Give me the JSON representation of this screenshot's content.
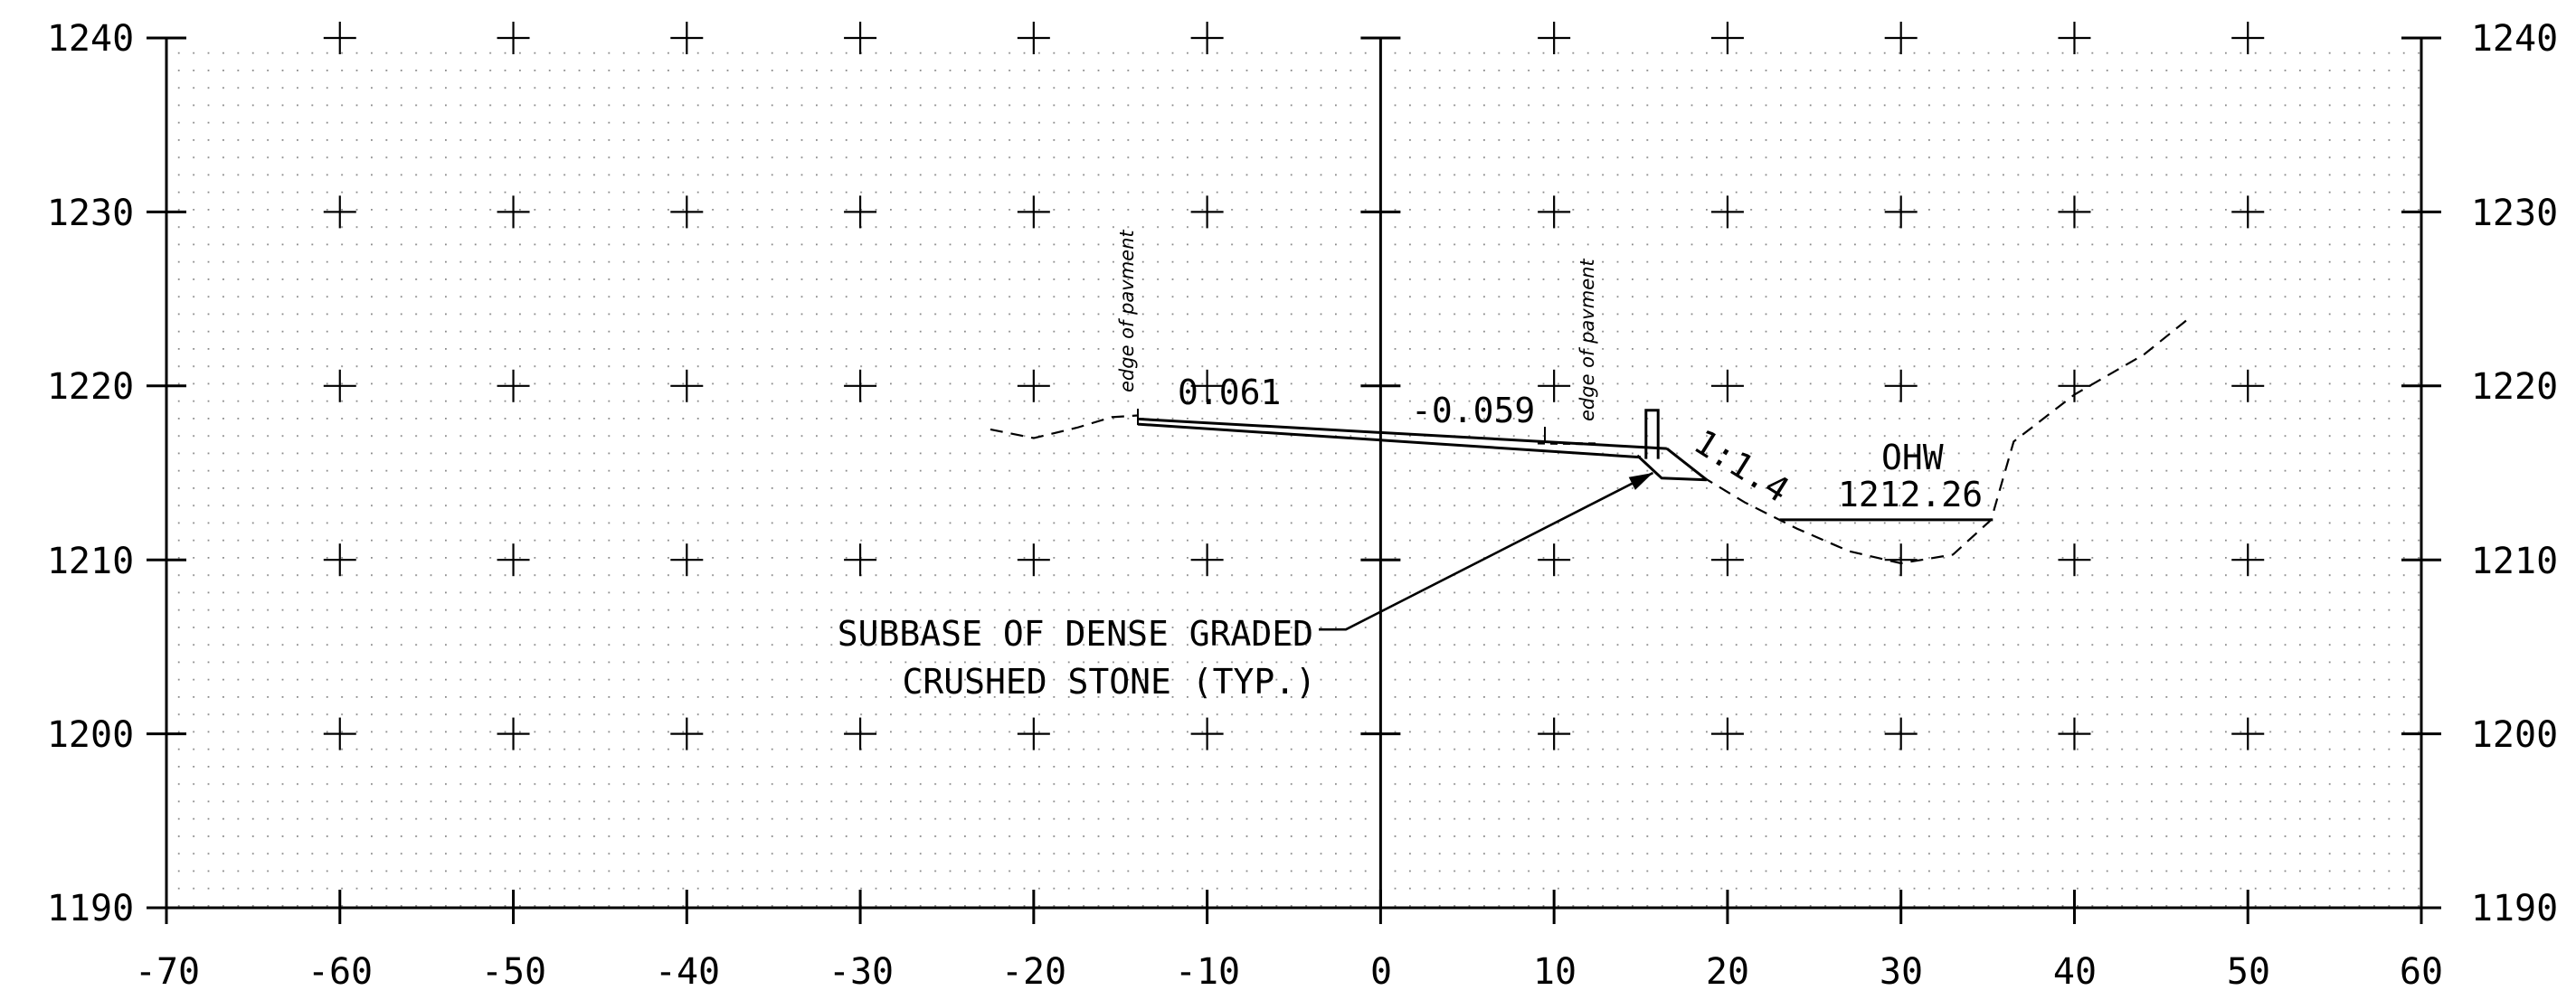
{
  "chart_data": {
    "type": "cross-section",
    "x_range": [
      -70,
      60
    ],
    "y_range": [
      1190,
      1240
    ],
    "x_ticks": [
      "-70",
      "-60",
      "-50",
      "-40",
      "-30",
      "-20",
      "-10",
      "0",
      "10",
      "20",
      "30",
      "40",
      "50",
      "60"
    ],
    "y_ticks": [
      "1190",
      "1200",
      "1210",
      "1220",
      "1230",
      "1240"
    ],
    "grid": "dotted",
    "existing_ground": [
      [
        -22.5,
        1217.5
      ],
      [
        -20,
        1217.0
      ],
      [
        -17.5,
        1217.6
      ],
      [
        -15.5,
        1218.2
      ],
      [
        -14,
        1218.3
      ]
    ],
    "existing_ground_right": [
      [
        18.5,
        1214.8
      ],
      [
        21,
        1213.3
      ],
      [
        24,
        1211.8
      ],
      [
        27,
        1210.5
      ],
      [
        30,
        1209.8
      ],
      [
        33,
        1210.3
      ],
      [
        35.2,
        1212.3
      ],
      [
        36.5,
        1216.8
      ],
      [
        40,
        1219.5
      ],
      [
        44,
        1221.8
      ],
      [
        46.5,
        1223.8
      ]
    ],
    "pavement_top": [
      [
        -14,
        1218.1
      ],
      [
        16.5,
        1216.4
      ]
    ],
    "pavement_bottom": [
      [
        -14,
        1217.8
      ],
      [
        15,
        1215.9
      ]
    ],
    "fill_slope": [
      [
        16.5,
        1216.4
      ],
      [
        18.8,
        1214.6
      ]
    ],
    "subbase": [
      [
        14.8,
        1216.0
      ],
      [
        16.2,
        1214.7
      ],
      [
        18.8,
        1214.6
      ]
    ],
    "water_line": [
      [
        23,
        1212.3
      ],
      [
        35.3,
        1212.3
      ]
    ],
    "guardrail_post": [
      [
        15.3,
        1215.8
      ],
      [
        15.3,
        1218.6
      ],
      [
        16.0,
        1218.6
      ],
      [
        16.0,
        1215.8
      ]
    ],
    "leader_start": [
      -2,
      1206.0
    ],
    "leader_arrow_end": [
      15.7,
      1215.0
    ],
    "annotations": {
      "left_cross_slope": "0.061",
      "right_cross_slope": "-0.059",
      "slope_ratio": "1:1.4",
      "water_label": "OHW",
      "water_elevation": "1212.26",
      "subbase_line1": "SUBBASE OF DENSE GRADED",
      "subbase_line2": "CRUSHED STONE (TYP.)",
      "edge_left": "edge of pavment",
      "edge_right": "edge of pavment"
    }
  }
}
